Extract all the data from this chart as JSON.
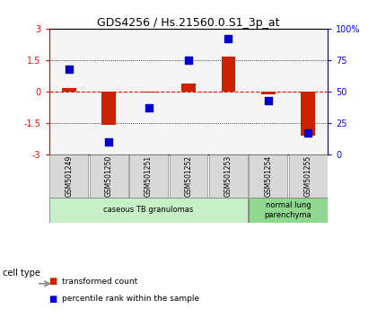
{
  "title": "GDS4256 / Hs.21560.0.S1_3p_at",
  "samples": [
    "GSM501249",
    "GSM501250",
    "GSM501251",
    "GSM501252",
    "GSM501253",
    "GSM501254",
    "GSM501255"
  ],
  "transformed_counts": [
    0.15,
    -1.6,
    -0.05,
    0.4,
    1.65,
    -0.15,
    -2.1
  ],
  "percentile_ranks": [
    68,
    10,
    37,
    75,
    92,
    43,
    17
  ],
  "ylim_left": [
    -3,
    3
  ],
  "ylim_right": [
    0,
    100
  ],
  "yticks_left": [
    -3,
    -1.5,
    0,
    1.5,
    3
  ],
  "yticks_right": [
    0,
    25,
    50,
    75,
    100
  ],
  "ytick_labels_left": [
    "-3",
    "-1.5",
    "0",
    "1.5",
    "3"
  ],
  "ytick_labels_right": [
    "0",
    "25",
    "50",
    "75",
    "100%"
  ],
  "cell_types": [
    {
      "label": "caseous TB granulomas",
      "samples": [
        0,
        1,
        2,
        3,
        4
      ],
      "color": "#c8f0c8"
    },
    {
      "label": "normal lung\nparenchyma",
      "samples": [
        5,
        6
      ],
      "color": "#90d890"
    }
  ],
  "bar_color": "#cc2200",
  "dot_color": "#0000cc",
  "bar_width": 0.35,
  "background_color": "#ffffff",
  "cell_type_label": "cell type",
  "legend_items": [
    {
      "color": "#cc2200",
      "label": "transformed count"
    },
    {
      "color": "#0000cc",
      "label": "percentile rank within the sample"
    }
  ]
}
